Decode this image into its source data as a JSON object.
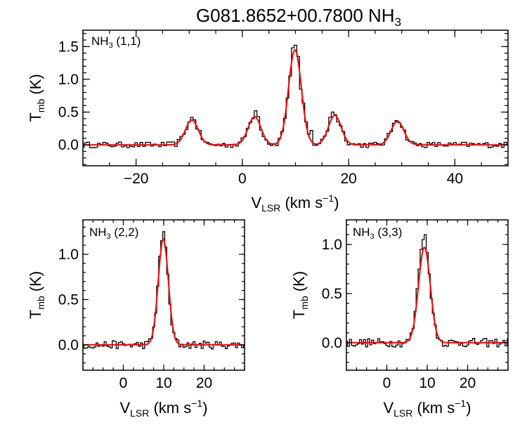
{
  "figure": {
    "title_main": "G081.8652+00.7800 NH",
    "title_sub": "3"
  },
  "chart_data": [
    {
      "type": "line",
      "panel": "top",
      "label_main": "NH",
      "label_sub": "3",
      "label_rest": " (1,1)",
      "xlabel_main": "V",
      "xlabel_sub": "LSR",
      "xlabel_rest": " (km s",
      "xlabel_sup": "−1",
      "xlabel_close": ")",
      "ylabel_main": "T",
      "ylabel_sub": "mb",
      "ylabel_rest": " (K)",
      "xlim": [
        -30,
        50
      ],
      "ylim": [
        -0.32,
        1.75
      ],
      "xticks": [
        -20,
        0,
        20,
        40
      ],
      "xtick_labels": [
        "−20",
        "0",
        "20",
        "40"
      ],
      "yticks": [
        0.0,
        0.5,
        1.0,
        1.5
      ],
      "ytick_labels": [
        "0.0",
        "0.5",
        "1.0",
        "1.5"
      ],
      "fit_components": [
        {
          "center": -9.5,
          "amplitude": 0.38,
          "sigma": 1.2
        },
        {
          "center": 2.3,
          "amplitude": 0.43,
          "sigma": 1.2
        },
        {
          "center": 9.9,
          "amplitude": 1.45,
          "sigma": 1.2
        },
        {
          "center": 17.4,
          "amplitude": 0.45,
          "sigma": 1.2
        },
        {
          "center": 29.2,
          "amplitude": 0.36,
          "sigma": 1.2
        }
      ],
      "series": [
        {
          "color": "#000000",
          "style": "histogram",
          "x": [
            -10,
            -9.5,
            -9,
            2,
            2.5,
            3,
            9,
            9.5,
            10,
            10.5,
            11,
            12,
            13,
            16.5,
            17,
            17.5,
            18,
            28.5,
            29,
            29.5
          ],
          "y": [
            0.35,
            0.42,
            0.38,
            0.4,
            0.52,
            0.43,
            1.05,
            1.48,
            1.52,
            1.35,
            0.85,
            0.35,
            0.22,
            0.42,
            0.5,
            0.46,
            0.35,
            0.33,
            0.37,
            0.34
          ]
        },
        {
          "color": "#ff0000",
          "style": "model"
        }
      ]
    },
    {
      "type": "line",
      "panel": "bottom-left",
      "label_main": "NH",
      "label_sub": "3",
      "label_rest": " (2,2)",
      "xlabel_main": "V",
      "xlabel_sub": "LSR",
      "xlabel_rest": " (km s",
      "xlabel_sup": "−1",
      "xlabel_close": ")",
      "ylabel_main": "T",
      "ylabel_sub": "mb",
      "ylabel_rest": " (K)",
      "xlim": [
        -10,
        30
      ],
      "ylim": [
        -0.28,
        1.38
      ],
      "xticks": [
        0,
        10,
        20
      ],
      "xtick_labels": [
        "0",
        "10",
        "20"
      ],
      "yticks": [
        0.0,
        0.5,
        1.0
      ],
      "ytick_labels": [
        "0.0",
        "0.5",
        "1.0"
      ],
      "fit_components": [
        {
          "center": 9.9,
          "amplitude": 1.17,
          "sigma": 1.25
        }
      ],
      "series": [
        {
          "color": "#000000",
          "style": "histogram",
          "x": [
            8,
            8.5,
            9,
            9.5,
            10,
            10.5,
            11,
            11.5,
            12
          ],
          "y": [
            0.35,
            0.65,
            0.98,
            1.15,
            1.25,
            1.08,
            0.78,
            0.45,
            0.22
          ]
        },
        {
          "color": "#ff0000",
          "style": "model"
        }
      ]
    },
    {
      "type": "line",
      "panel": "bottom-right",
      "label_main": "NH",
      "label_sub": "3",
      "label_rest": " (3,3)",
      "xlabel_main": "V",
      "xlabel_sub": "LSR",
      "xlabel_rest": " (km s",
      "xlabel_sup": "−1",
      "xlabel_close": ")",
      "ylabel_main": "T",
      "ylabel_sub": "mb",
      "ylabel_rest": " (K)",
      "xlim": [
        -10,
        30
      ],
      "ylim": [
        -0.28,
        1.25
      ],
      "xticks": [
        0,
        10,
        20
      ],
      "xtick_labels": [
        "0",
        "10",
        "20"
      ],
      "yticks": [
        0.0,
        0.5,
        1.0
      ],
      "ytick_labels": [
        "0.0",
        "0.5",
        "1.0"
      ],
      "fit_components": [
        {
          "center": 9.3,
          "amplitude": 0.97,
          "sigma": 1.45
        }
      ],
      "series": [
        {
          "color": "#000000",
          "style": "histogram",
          "x": [
            7,
            7.5,
            8,
            8.5,
            9,
            9.5,
            10,
            10.5,
            11,
            11.5,
            12
          ],
          "y": [
            0.32,
            0.55,
            0.75,
            0.95,
            1.05,
            1.1,
            0.92,
            0.7,
            0.45,
            0.3,
            0.18
          ]
        },
        {
          "color": "#ff0000",
          "style": "model"
        }
      ]
    }
  ]
}
